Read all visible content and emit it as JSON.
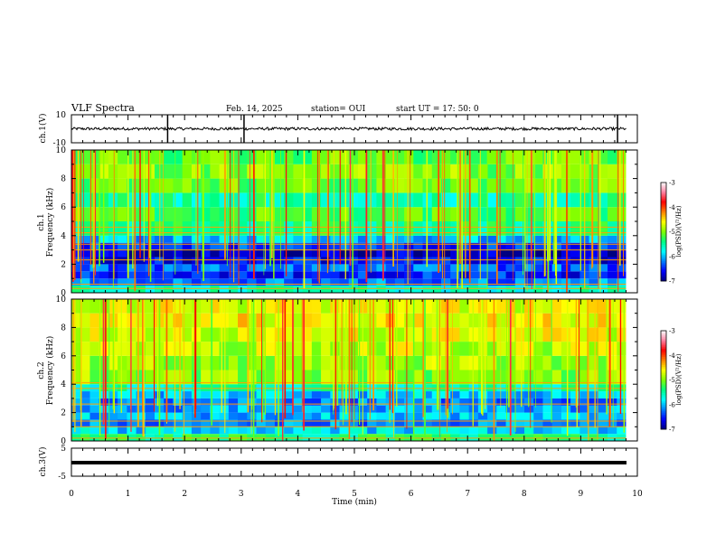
{
  "header": {
    "title": "VLF Spectra",
    "date": "Feb. 14, 2025",
    "station": "station= OUI",
    "start": "start  UT  =  17: 50: 0"
  },
  "chart_data": [
    {
      "type": "line",
      "panel": "ch.1 waveform",
      "ylabel": "ch.1(V)",
      "ylim": [
        -10,
        10
      ],
      "yticks": [
        "10",
        "-10"
      ],
      "baseline": 0,
      "noise_amplitude": 1,
      "spikes_min": [
        1.7,
        3.05,
        9.65
      ],
      "color": "#000000"
    },
    {
      "type": "heatmap",
      "panel": "ch.1 spectrogram",
      "ylabel": [
        "ch.1",
        "Frequency  (kHz)"
      ],
      "ylim": [
        0,
        10
      ],
      "yticks": [
        "0",
        "2",
        "4",
        "6",
        "8",
        "10"
      ],
      "xlim": [
        0,
        9.8
      ],
      "value_description": "log(PSD) levels by frequency band",
      "bands_khz": [
        0,
        0.5,
        1,
        1.5,
        2,
        2.5,
        3,
        3.5,
        4,
        5,
        6,
        7,
        8,
        9,
        10
      ],
      "band_levels_log_psd": [
        -5.6,
        -6.2,
        -6.5,
        -6.3,
        -6.6,
        -6.8,
        -6.4,
        -6.0,
        -5.4,
        -5.2,
        -5.5,
        -5.1,
        -5.0,
        -5.1
      ],
      "bright_lines_khz": [
        0.3,
        0.6,
        2.3,
        3.0,
        3.4,
        4.2,
        4.6
      ],
      "colorbar": {
        "label": "log(PSD)(V²/Hz)",
        "ticks": [
          "-3",
          "-4",
          "-5",
          "-6",
          "-7"
        ],
        "range": [
          -7,
          -3
        ],
        "colors": [
          "#00007f",
          "#0000ff",
          "#0080ff",
          "#00ffff",
          "#00ff80",
          "#80ff00",
          "#ffff00",
          "#ff8000",
          "#ff0000",
          "#ff80a0",
          "#ffffff"
        ]
      }
    },
    {
      "type": "heatmap",
      "panel": "ch.2 spectrogram",
      "ylabel": [
        "ch.2",
        "Frequency  (kHz)"
      ],
      "ylim": [
        0,
        10
      ],
      "yticks": [
        "0",
        "2",
        "4",
        "6",
        "8",
        "10"
      ],
      "xlim": [
        0,
        9.8
      ],
      "value_description": "log(PSD) levels by frequency band",
      "bands_khz": [
        0,
        0.5,
        1,
        1.5,
        2,
        2.5,
        3,
        3.5,
        4,
        5,
        6,
        7,
        8,
        9,
        10
      ],
      "band_levels_log_psd": [
        -5.4,
        -5.9,
        -6.2,
        -6.0,
        -6.1,
        -6.2,
        -6.0,
        -5.6,
        -5.0,
        -4.9,
        -4.8,
        -4.7,
        -4.6,
        -4.7
      ],
      "bright_lines_khz": [
        0.2,
        1.0,
        1.4,
        2.6,
        3.7,
        4.1
      ],
      "colorbar": {
        "label": "log(PSD)(V²/Hz)",
        "ticks": [
          "-3",
          "-4",
          "-5",
          "-6",
          "-7"
        ],
        "range": [
          -7,
          -3
        ],
        "colors": [
          "#00007f",
          "#0000ff",
          "#0080ff",
          "#00ffff",
          "#00ff80",
          "#80ff00",
          "#ffff00",
          "#ff8000",
          "#ff0000",
          "#ff80a0",
          "#ffffff"
        ]
      }
    },
    {
      "type": "line",
      "panel": "ch.3 waveform",
      "ylabel": "ch.3(V)",
      "ylim": [
        -5,
        5
      ],
      "yticks": [
        "5",
        "-5"
      ],
      "baseline": 0,
      "color": "#000000"
    }
  ],
  "xaxis": {
    "label": "Time  (min)",
    "ticks": [
      "0",
      "1",
      "2",
      "3",
      "4",
      "5",
      "6",
      "7",
      "8",
      "9",
      "10"
    ],
    "range": [
      0,
      10
    ]
  }
}
